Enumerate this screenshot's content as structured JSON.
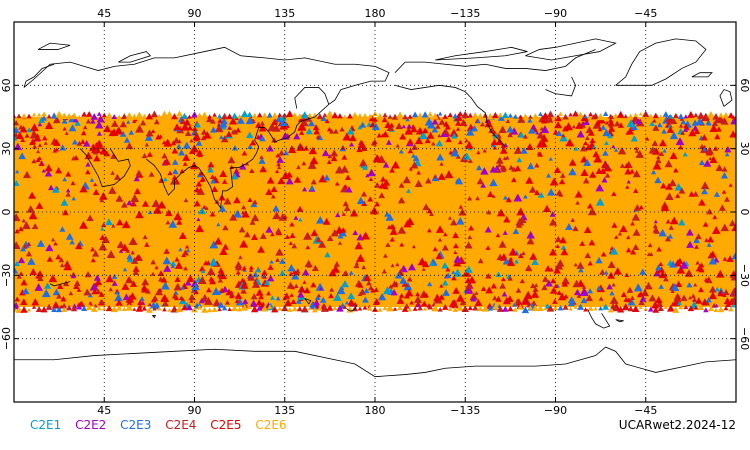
{
  "map": {
    "projection": "equirectangular",
    "center_longitude": 180,
    "lat_range": [
      -90,
      90
    ],
    "lon_range": [
      0,
      360
    ],
    "grid": "dotted",
    "coverage_lat_range": [
      -45,
      45
    ],
    "background_color": "#ffffff",
    "coastline_color": "#000000",
    "dominant_point_color": "#ffaa00"
  },
  "axes": {
    "top_ticks": [
      "45",
      "90",
      "135",
      "180",
      "−135",
      "−90",
      "−45"
    ],
    "bottom_ticks": [
      "45",
      "90",
      "135",
      "180",
      "−135",
      "−90",
      "−45"
    ],
    "left_ticks": [
      "60",
      "30",
      "0",
      "−30",
      "−60"
    ],
    "right_ticks": [
      "60",
      "30",
      "0",
      "−30",
      "−60"
    ],
    "lon_values": [
      45,
      90,
      135,
      180,
      225,
      270,
      315
    ],
    "lat_values": [
      60,
      30,
      0,
      -30,
      -60
    ]
  },
  "legend": {
    "items": [
      {
        "label": "C2E1",
        "color": "#00a0d0"
      },
      {
        "label": "C2E2",
        "color": "#a000c8"
      },
      {
        "label": "C2E3",
        "color": "#1e6ee6"
      },
      {
        "label": "C2E4",
        "color": "#c81e1e"
      },
      {
        "label": "C2E5",
        "color": "#e60000"
      },
      {
        "label": "C2E6",
        "color": "#ffaa00"
      }
    ]
  },
  "dataset_label": "UCARwet2.2024-12"
}
